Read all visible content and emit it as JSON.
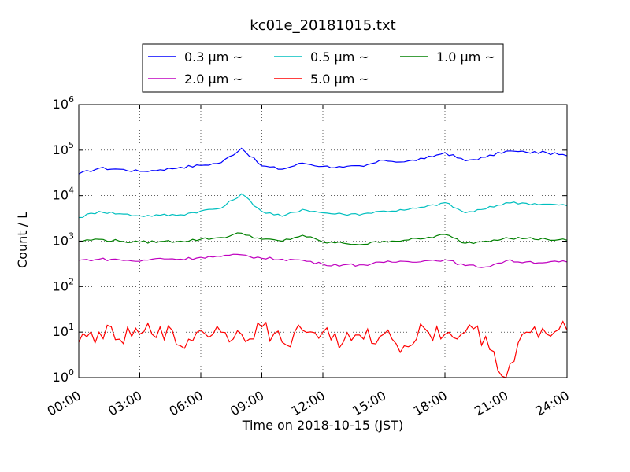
{
  "chart_data": {
    "type": "line",
    "title": "kc01e_20181015.txt",
    "xlabel": "Time on 2018-10-15 (JST)",
    "ylabel": "Count / L",
    "xlim": [
      "2018-10-15 00:00",
      "2018-10-16 00:00"
    ],
    "ylim": [
      1,
      1000000
    ],
    "y_scale": "log",
    "grid": true,
    "legend_position": "top",
    "x_ticks": [
      "00:00",
      "03:00",
      "06:00",
      "09:00",
      "12:00",
      "15:00",
      "18:00",
      "21:00",
      "24:00"
    ],
    "y_ticks": [
      {
        "base": "10",
        "exp": "0"
      },
      {
        "base": "10",
        "exp": "1"
      },
      {
        "base": "10",
        "exp": "2"
      },
      {
        "base": "10",
        "exp": "3"
      },
      {
        "base": "10",
        "exp": "4"
      },
      {
        "base": "10",
        "exp": "5"
      },
      {
        "base": "10",
        "exp": "6"
      }
    ],
    "x_hours": [
      0,
      1,
      2,
      3,
      4,
      5,
      6,
      7,
      8,
      9,
      10,
      11,
      12,
      13,
      14,
      15,
      16,
      17,
      18,
      19,
      20,
      21,
      22,
      23,
      24
    ],
    "series": [
      {
        "name": "0.3 μm ~",
        "color": "#0000ff",
        "values": [
          30000,
          40000,
          38000,
          34000,
          37000,
          42000,
          46000,
          53000,
          110000,
          45000,
          38000,
          52000,
          44000,
          42000,
          44000,
          60000,
          55000,
          65000,
          88000,
          58000,
          70000,
          95000,
          90000,
          88000,
          75000
        ]
      },
      {
        "name": "0.5 μm ~",
        "color": "#00bfbf",
        "values": [
          3300,
          4500,
          4000,
          3600,
          3700,
          3800,
          4600,
          5300,
          11000,
          4500,
          3500,
          5000,
          4200,
          3900,
          4000,
          4600,
          4800,
          5600,
          7000,
          4200,
          5100,
          7000,
          6800,
          6500,
          6000
        ]
      },
      {
        "name": "1.0 μm ~",
        "color": "#008000",
        "values": [
          1000,
          1100,
          1000,
          950,
          980,
          1000,
          1100,
          1200,
          1500,
          1100,
          1000,
          1350,
          950,
          900,
          850,
          1000,
          1050,
          1150,
          1400,
          900,
          1000,
          1200,
          1150,
          1100,
          1050
        ]
      },
      {
        "name": "2.0 μm ~",
        "color": "#bf00bf",
        "values": [
          380,
          400,
          390,
          360,
          420,
          400,
          440,
          460,
          500,
          420,
          400,
          380,
          310,
          300,
          300,
          340,
          360,
          370,
          390,
          290,
          270,
          370,
          350,
          340,
          350
        ]
      },
      {
        "name": "5.0 μm ~",
        "color": "#ff0000",
        "values": [
          6,
          10,
          7,
          9,
          13,
          5,
          11,
          10,
          9,
          13,
          6,
          11,
          10,
          6,
          7,
          9,
          5,
          12,
          9,
          10,
          8,
          1,
          10,
          9,
          11
        ]
      }
    ]
  }
}
